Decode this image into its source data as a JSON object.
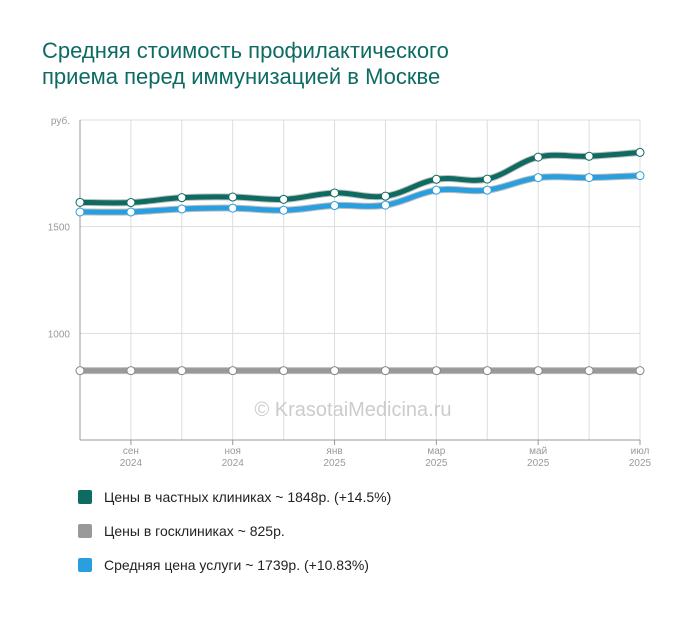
{
  "title_lines": [
    "Средняя стоимость профилактического",
    "приема перед иммунизацией в Москве"
  ],
  "watermark": "© KrasotaiMedicina.ru",
  "colors": {
    "private": "#0e6b62",
    "public": "#999999",
    "average": "#2a9fe0",
    "grid": "#dddddd",
    "axis": "#999999",
    "tick_text": "#999999"
  },
  "chart_data": {
    "type": "line",
    "title": "Средняя стоимость профилактического приема перед иммунизацией в Москве",
    "ylabel": "руб.",
    "y_ticks": [
      1000,
      1500
    ],
    "ylim": [
      500,
      2000
    ],
    "x": [
      "2024-08",
      "2024-09",
      "2024-10",
      "2024-11",
      "2024-12",
      "2025-01",
      "2025-02",
      "2025-03",
      "2025-04",
      "2025-05",
      "2025-06",
      "2025-07"
    ],
    "x_tick_labels": [
      {
        "x": "2024-09",
        "month": "сен",
        "year": "2024"
      },
      {
        "x": "2024-11",
        "month": "ноя",
        "year": "2024"
      },
      {
        "x": "2025-01",
        "month": "янв",
        "year": "2025"
      },
      {
        "x": "2025-03",
        "month": "мар",
        "year": "2025"
      },
      {
        "x": "2025-05",
        "month": "май",
        "year": "2025"
      },
      {
        "x": "2025-07",
        "month": "июл",
        "year": "2025"
      }
    ],
    "grid": true,
    "legend_position": "bottom",
    "series": [
      {
        "key": "private",
        "name": "Цены в частных клиниках ~ 1848р. (+14.5%)",
        "color": "#0e6b62",
        "values": [
          1614,
          1613,
          1636,
          1639,
          1628,
          1658,
          1643,
          1722,
          1723,
          1826,
          1830,
          1848
        ]
      },
      {
        "key": "public",
        "name": "Цены в госклиниках ~ 825р.",
        "color": "#999999",
        "values": [
          825,
          825,
          825,
          825,
          825,
          825,
          825,
          825,
          825,
          825,
          825,
          825
        ]
      },
      {
        "key": "average",
        "name": "Средняя цена услуги ~ 1739р. (+10.83%)",
        "color": "#2a9fe0",
        "values": [
          1569,
          1569,
          1583,
          1587,
          1577,
          1599,
          1601,
          1671,
          1671,
          1730,
          1730,
          1739
        ]
      }
    ]
  }
}
